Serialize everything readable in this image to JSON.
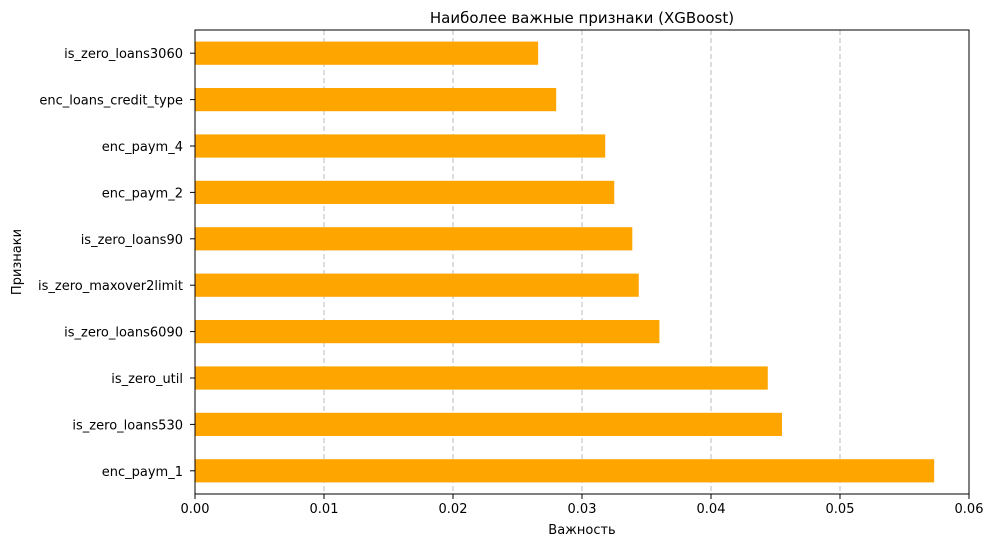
{
  "chart_data": {
    "type": "bar",
    "orientation": "horizontal",
    "title": "Наиболее важные признаки (XGBoost)",
    "xlabel": "Важность",
    "ylabel": "Признаки",
    "xlim": [
      0,
      0.06
    ],
    "xticks": [
      "0.00",
      "0.01",
      "0.02",
      "0.03",
      "0.04",
      "0.05",
      "0.06"
    ],
    "xtick_values": [
      0,
      0.01,
      0.02,
      0.03,
      0.04,
      0.05,
      0.06
    ],
    "grid": "x-dashed",
    "bar_color": "#FFA500",
    "categories": [
      "is_zero_loans3060",
      "enc_loans_credit_type",
      "enc_paym_4",
      "enc_paym_2",
      "is_zero_loans90",
      "is_zero_maxover2limit",
      "is_zero_loans6090",
      "is_zero_util",
      "is_zero_loans530",
      "enc_paym_1"
    ],
    "values": [
      0.0266,
      0.028,
      0.0318,
      0.0325,
      0.0339,
      0.0344,
      0.036,
      0.0444,
      0.0455,
      0.0573
    ]
  }
}
